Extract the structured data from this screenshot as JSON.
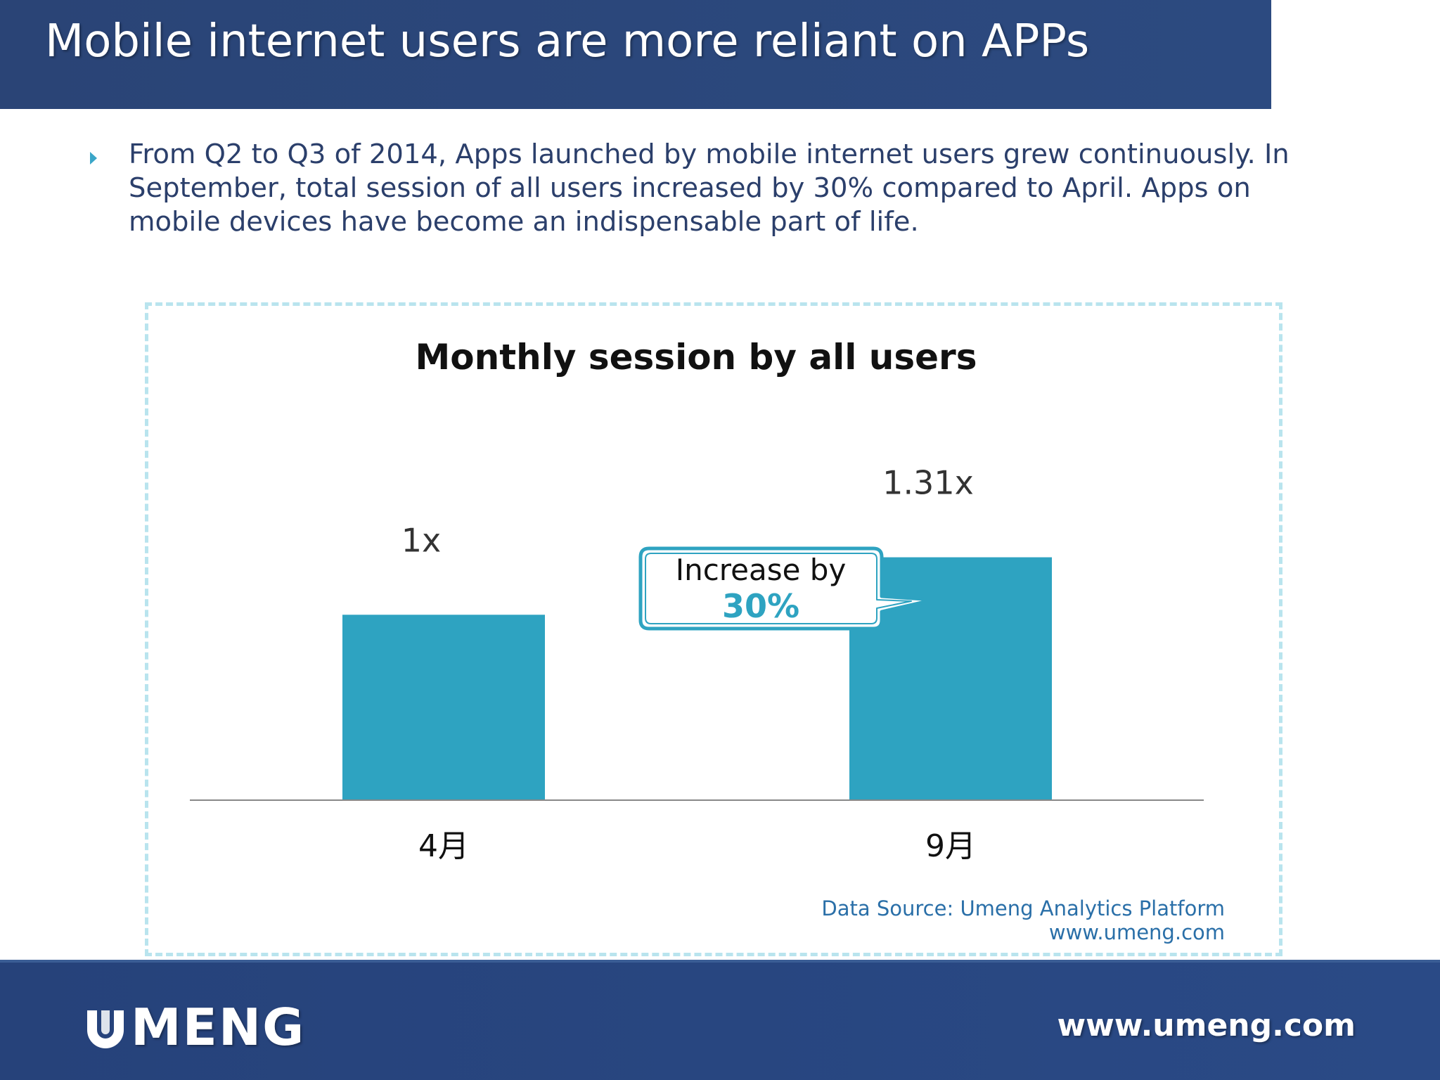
{
  "header": {
    "title": "Mobile internet users are more reliant on APPs"
  },
  "bullet": {
    "text": "From Q2 to Q3 of 2014, Apps launched by mobile internet users grew continuously. In September, total session of all users increased by 30% compared to April. Apps on mobile devices have become an indispensable part of life."
  },
  "chart_data": {
    "type": "bar",
    "title": "Monthly session by all users",
    "categories": [
      "4月",
      "9月"
    ],
    "values": [
      1,
      1.31
    ],
    "data_labels": [
      "1x",
      "1.31x"
    ],
    "xlabel": "",
    "ylabel": "",
    "ylim": [
      0,
      1.68
    ],
    "grid": false,
    "bar_color": "#2ea3c1",
    "callout": {
      "line1": "Increase by",
      "line2": "30%",
      "accent_color": "#2ea3c1"
    },
    "source_line1": "Data Source: Umeng Analytics Platform",
    "source_line2": "www.umeng.com"
  },
  "footer": {
    "logo_text": "MENG",
    "url": "www.umeng.com"
  },
  "colors": {
    "title_bar": "#2a4476",
    "bullet_text": "#2b3f6b",
    "source_text": "#2a6fa8",
    "footer": "#26427a"
  }
}
